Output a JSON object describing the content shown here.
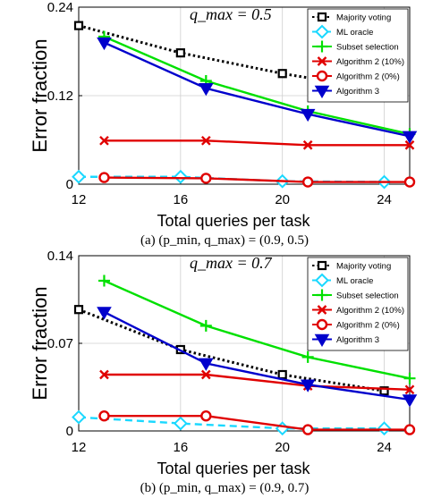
{
  "chart_data": [
    {
      "type": "line",
      "panel": "a",
      "caption": "(a) (p_min, q_max) = (0.9, 0.5)",
      "annotation": "q_max = 0.5",
      "xlabel": "Total queries per task",
      "ylabel": "Error fraction",
      "xlim": [
        12,
        25
      ],
      "ylim": [
        0,
        0.24
      ],
      "xticks": [
        "12",
        "16",
        "20",
        "24"
      ],
      "yticks": [
        "0",
        "0.12",
        "0.24"
      ],
      "grid": true,
      "legend_position": "top-right",
      "series": [
        {
          "name": "Majority voting",
          "color": "#000000",
          "dash": "dotted",
          "marker": "square",
          "x": [
            12,
            16,
            20,
            24
          ],
          "y": [
            0.215,
            0.178,
            0.15,
            0.127
          ]
        },
        {
          "name": "ML oracle",
          "color": "#1ad8ff",
          "dash": "dashed",
          "marker": "diamond",
          "x": [
            12,
            16,
            20,
            24
          ],
          "y": [
            0.01,
            0.01,
            0.004,
            0.003
          ]
        },
        {
          "name": "Subset selection",
          "color": "#00e000",
          "dash": "solid",
          "marker": "plus",
          "x": [
            13,
            17,
            21,
            25
          ],
          "y": [
            0.2,
            0.14,
            0.099,
            0.068
          ]
        },
        {
          "name": "Algorithm 2 (10%)",
          "color": "#e00000",
          "dash": "solid",
          "marker": "x",
          "x": [
            13,
            17,
            21,
            25
          ],
          "y": [
            0.059,
            0.059,
            0.053,
            0.053
          ]
        },
        {
          "name": "Algorithm 2 (0%)",
          "color": "#e00000",
          "dash": "solid",
          "marker": "circle",
          "x": [
            13,
            17,
            21,
            25
          ],
          "y": [
            0.009,
            0.008,
            0.003,
            0.003
          ]
        },
        {
          "name": "Algorithm 3",
          "color": "#0000cc",
          "dash": "solid",
          "marker": "triangle-down",
          "x": [
            13,
            17,
            21,
            25
          ],
          "y": [
            0.192,
            0.13,
            0.095,
            0.065
          ]
        }
      ]
    },
    {
      "type": "line",
      "panel": "b",
      "caption": "(b) (p_min, q_max) = (0.9, 0.7)",
      "annotation": "q_max = 0.7",
      "xlabel": "Total queries per task",
      "ylabel": "Error fraction",
      "xlim": [
        12,
        25
      ],
      "ylim": [
        0,
        0.14
      ],
      "xticks": [
        "12",
        "16",
        "20",
        "24"
      ],
      "yticks": [
        "0",
        "0.07",
        "0.14"
      ],
      "grid": true,
      "legend_position": "top-right",
      "series": [
        {
          "name": "Majority voting",
          "color": "#000000",
          "dash": "dotted",
          "marker": "square",
          "x": [
            12,
            16,
            20,
            24
          ],
          "y": [
            0.097,
            0.065,
            0.045,
            0.032
          ]
        },
        {
          "name": "ML oracle",
          "color": "#1ad8ff",
          "dash": "dashed",
          "marker": "diamond",
          "x": [
            12,
            16,
            20,
            24
          ],
          "y": [
            0.011,
            0.006,
            0.002,
            0.002
          ]
        },
        {
          "name": "Subset selection",
          "color": "#00e000",
          "dash": "solid",
          "marker": "plus",
          "x": [
            13,
            17,
            21,
            25
          ],
          "y": [
            0.12,
            0.084,
            0.059,
            0.042
          ]
        },
        {
          "name": "Algorithm 2 (10%)",
          "color": "#e00000",
          "dash": "solid",
          "marker": "x",
          "x": [
            13,
            17,
            21,
            25
          ],
          "y": [
            0.045,
            0.045,
            0.036,
            0.033
          ]
        },
        {
          "name": "Algorithm 2 (0%)",
          "color": "#e00000",
          "dash": "solid",
          "marker": "circle",
          "x": [
            13,
            17,
            21,
            25
          ],
          "y": [
            0.012,
            0.012,
            0.001,
            0.001
          ]
        },
        {
          "name": "Algorithm 3",
          "color": "#0000cc",
          "dash": "solid",
          "marker": "triangle-down",
          "x": [
            13,
            17,
            21,
            25
          ],
          "y": [
            0.095,
            0.054,
            0.037,
            0.025
          ]
        }
      ]
    }
  ]
}
